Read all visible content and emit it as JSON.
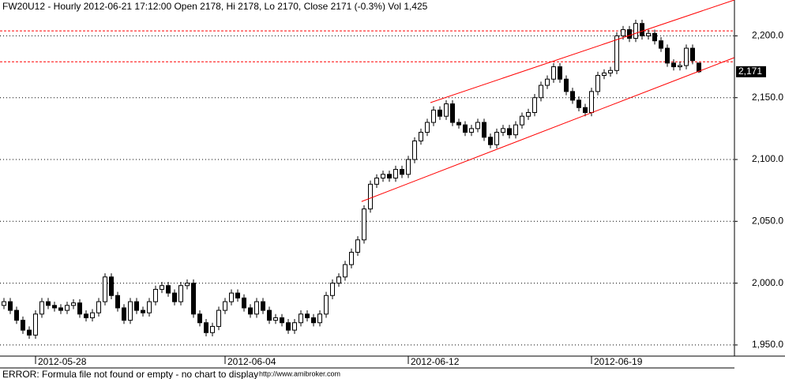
{
  "chart_data": {
    "type": "candlestick",
    "title": "FW20U12 - Hourly 2012-06-21 17:12:00 Open 2178, Hi 2178, Lo 2170, Close 2171 (-0.3%) Vol 1,425",
    "footer": "ERROR: Formula file not found or empty - no chart to display",
    "watermark": "http://www.amibroker.com",
    "ylim": [
      1941,
      2229
    ],
    "yticks": [
      {
        "value": 1950,
        "label": "1,950.0"
      },
      {
        "value": 2000,
        "label": "2,000.0"
      },
      {
        "value": 2050,
        "label": "2,050.0"
      },
      {
        "value": 2100,
        "label": "2,100.0"
      },
      {
        "value": 2150,
        "label": "2,150.0"
      },
      {
        "value": 2200,
        "label": "2,200.0"
      }
    ],
    "grid": true,
    "last_price": {
      "value": 2171,
      "label": "2,171"
    },
    "hlines": [
      2204,
      2179
    ],
    "trendlines": [
      {
        "x": [
          67.5,
          115.6
        ],
        "y": [
          2146,
          2229
        ]
      },
      {
        "x": [
          56.6,
          115.6
        ],
        "y": [
          2066,
          2182.4
        ]
      }
    ],
    "categories": [
      null,
      null,
      null,
      null,
      null,
      "2012-05-28",
      null,
      null,
      null,
      null,
      null,
      null,
      null,
      null,
      null,
      null,
      null,
      null,
      null,
      null,
      null,
      null,
      null,
      null,
      null,
      null,
      null,
      null,
      null,
      null,
      null,
      null,
      null,
      null,
      null,
      "2012-06-04",
      null,
      null,
      null,
      null,
      null,
      null,
      null,
      null,
      null,
      null,
      null,
      null,
      null,
      null,
      null,
      null,
      null,
      null,
      null,
      null,
      null,
      null,
      null,
      null,
      null,
      null,
      null,
      null,
      "2012-06-12",
      null,
      null,
      null,
      null,
      null,
      null,
      null,
      null,
      null,
      null,
      null,
      null,
      null,
      null,
      null,
      null,
      null,
      null,
      null,
      null,
      null,
      null,
      null,
      null,
      null,
      null,
      null,
      null,
      "2012-06-19",
      null,
      null,
      null,
      null,
      null,
      null,
      null,
      null,
      null,
      null,
      null,
      null,
      null,
      null,
      null,
      null,
      null
    ],
    "open": [
      1982,
      1985,
      1978,
      1970,
      1962,
      1958,
      1975,
      1985,
      1982,
      1980,
      1978,
      1982,
      1984,
      1975,
      1972,
      1976,
      1985,
      2005,
      1990,
      1980,
      1970,
      1985,
      1978,
      1976,
      1985,
      1995,
      1998,
      1992,
      1985,
      1998,
      2000,
      1975,
      1968,
      1960,
      1965,
      1978,
      1985,
      1992,
      1988,
      1980,
      1975,
      1985,
      1978,
      1970,
      1972,
      1968,
      1962,
      1968,
      1975,
      1972,
      1968,
      1975,
      1990,
      2000,
      2005,
      2015,
      2025,
      2035,
      2060,
      2080,
      2085,
      2088,
      2085,
      2092,
      2088,
      2100,
      2115,
      2122,
      2130,
      2140,
      2135,
      2145,
      2130,
      2128,
      2122,
      2125,
      2130,
      2118,
      2112,
      2122,
      2125,
      2120,
      2128,
      2135,
      2138,
      2150,
      2160,
      2165,
      2175,
      2165,
      2155,
      2148,
      2142,
      2138,
      2155,
      2168,
      2170,
      2172,
      2200,
      2205,
      2198,
      2210,
      2200,
      2202,
      2196,
      2190,
      2178,
      2175,
      2176,
      2190,
      2178
    ],
    "high": [
      1988,
      1988,
      1981,
      1973,
      1965,
      1978,
      1988,
      1988,
      1985,
      1983,
      1985,
      1987,
      1987,
      1978,
      1979,
      1988,
      2008,
      2008,
      1993,
      1983,
      1988,
      1988,
      1981,
      1988,
      1998,
      2001,
      2001,
      1995,
      2001,
      2003,
      2003,
      1978,
      1971,
      1968,
      1981,
      1988,
      1995,
      1995,
      1991,
      1983,
      1988,
      1988,
      1981,
      1975,
      1975,
      1971,
      1971,
      1978,
      1978,
      1975,
      1978,
      1993,
      2003,
      2008,
      2018,
      2028,
      2038,
      2063,
      2083,
      2088,
      2091,
      2091,
      2095,
      2095,
      2103,
      2118,
      2125,
      2133,
      2143,
      2143,
      2148,
      2148,
      2133,
      2131,
      2128,
      2133,
      2133,
      2121,
      2125,
      2128,
      2128,
      2131,
      2138,
      2141,
      2153,
      2163,
      2168,
      2178,
      2178,
      2168,
      2158,
      2151,
      2145,
      2158,
      2171,
      2173,
      2175,
      2203,
      2208,
      2208,
      2213,
      2213,
      2205,
      2205,
      2199,
      2193,
      2181,
      2179,
      2193,
      2193,
      2178
    ],
    "low": [
      1979,
      1975,
      1967,
      1959,
      1955,
      1955,
      1972,
      1979,
      1977,
      1975,
      1975,
      1979,
      1972,
      1969,
      1969,
      1973,
      1982,
      1987,
      1977,
      1967,
      1967,
      1975,
      1973,
      1973,
      1982,
      1992,
      1989,
      1982,
      1982,
      1995,
      1972,
      1965,
      1957,
      1957,
      1962,
      1975,
      1982,
      1985,
      1977,
      1972,
      1972,
      1975,
      1967,
      1967,
      1965,
      1959,
      1959,
      1965,
      1969,
      1965,
      1965,
      1972,
      1987,
      1997,
      2002,
      2012,
      2022,
      2032,
      2057,
      2077,
      2082,
      2082,
      2082,
      2085,
      2085,
      2097,
      2112,
      2119,
      2127,
      2132,
      2132,
      2127,
      2125,
      2119,
      2119,
      2122,
      2115,
      2109,
      2109,
      2119,
      2117,
      2117,
      2125,
      2132,
      2135,
      2147,
      2157,
      2162,
      2162,
      2152,
      2145,
      2139,
      2135,
      2135,
      2152,
      2165,
      2167,
      2169,
      2197,
      2195,
      2195,
      2197,
      2197,
      2193,
      2187,
      2175,
      2172,
      2172,
      2173,
      2177,
      2170
    ],
    "close": [
      1985,
      1978,
      1970,
      1962,
      1958,
      1975,
      1985,
      1982,
      1980,
      1978,
      1982,
      1984,
      1975,
      1972,
      1976,
      1985,
      2005,
      1990,
      1980,
      1970,
      1985,
      1978,
      1976,
      1985,
      1995,
      1998,
      1992,
      1985,
      1998,
      2000,
      1975,
      1968,
      1960,
      1965,
      1978,
      1985,
      1992,
      1988,
      1980,
      1975,
      1985,
      1978,
      1970,
      1972,
      1968,
      1962,
      1968,
      1975,
      1972,
      1968,
      1975,
      1990,
      2000,
      2005,
      2015,
      2025,
      2035,
      2060,
      2080,
      2085,
      2088,
      2085,
      2092,
      2088,
      2100,
      2115,
      2122,
      2130,
      2140,
      2135,
      2145,
      2130,
      2128,
      2122,
      2125,
      2130,
      2118,
      2112,
      2122,
      2125,
      2120,
      2128,
      2135,
      2138,
      2150,
      2160,
      2165,
      2175,
      2165,
      2155,
      2148,
      2142,
      2138,
      2155,
      2168,
      2170,
      2172,
      2200,
      2205,
      2198,
      2210,
      2200,
      2202,
      2196,
      2190,
      2178,
      2175,
      2176,
      2190,
      2180,
      2171
    ],
    "up_color": "#ffffff",
    "down_color": "#000000",
    "line_color": "#ff0000"
  }
}
